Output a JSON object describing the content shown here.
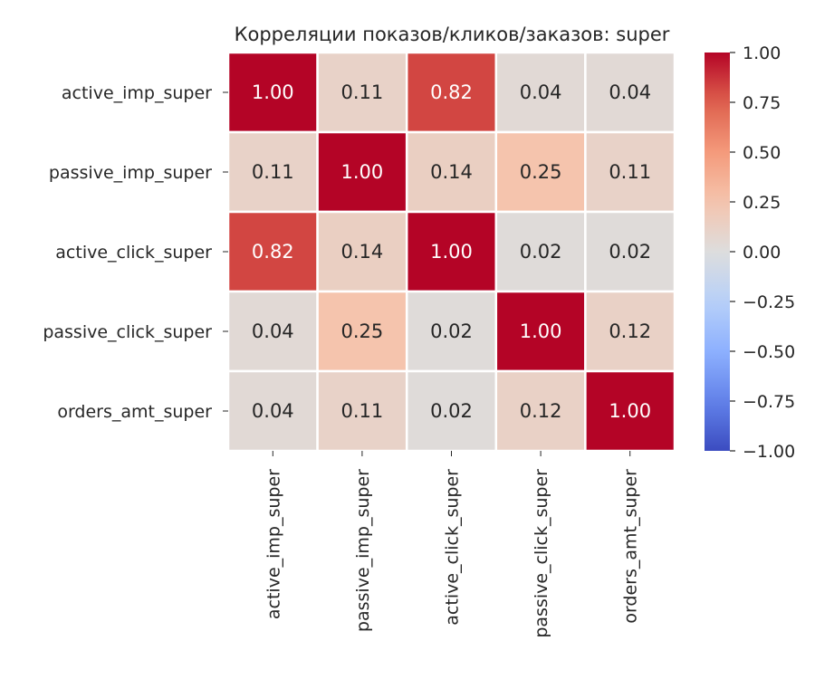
{
  "chart_data": {
    "type": "heatmap",
    "title": "Корреляции показов/кликов/заказов: super",
    "rows": [
      "active_imp_super",
      "passive_imp_super",
      "active_click_super",
      "passive_click_super",
      "orders_amt_super"
    ],
    "columns": [
      "active_imp_super",
      "passive_imp_super",
      "active_click_super",
      "passive_click_super",
      "orders_amt_super"
    ],
    "values": [
      [
        1.0,
        0.11,
        0.82,
        0.04,
        0.04
      ],
      [
        0.11,
        1.0,
        0.14,
        0.25,
        0.11
      ],
      [
        0.82,
        0.14,
        1.0,
        0.02,
        0.02
      ],
      [
        0.04,
        0.25,
        0.02,
        1.0,
        0.12
      ],
      [
        0.04,
        0.11,
        0.02,
        0.12,
        1.0
      ]
    ],
    "value_format": "0.00",
    "colormap": "coolwarm",
    "vmin": -1.0,
    "vmax": 1.0,
    "colorbar": {
      "ticks": [
        1.0,
        0.75,
        0.5,
        0.25,
        0.0,
        -0.25,
        -0.5,
        -0.75,
        -1.0
      ],
      "tick_labels": [
        "1.00",
        "0.75",
        "0.50",
        "0.25",
        "0.00",
        "−0.25",
        "−0.50",
        "−0.75",
        "−1.00"
      ]
    },
    "cell_gridlines": "white",
    "xlabel": "",
    "ylabel": ""
  }
}
